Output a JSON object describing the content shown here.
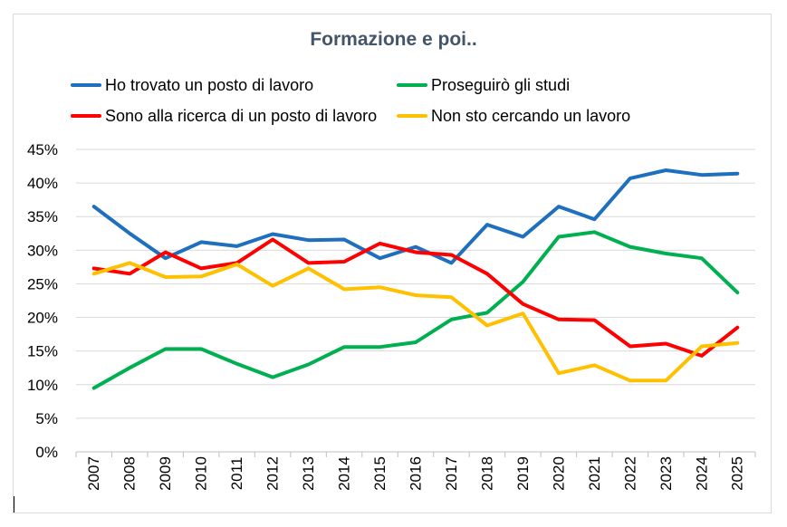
{
  "chart_data": {
    "type": "line",
    "title": "Formazione e poi..",
    "xlabel": "",
    "ylabel": "",
    "categories": [
      "2007",
      "2008",
      "2009",
      "2010",
      "2011",
      "2012",
      "2013",
      "2014",
      "2015",
      "2016",
      "2017",
      "2018",
      "2019",
      "2020",
      "2021",
      "2022",
      "2023",
      "2024",
      "2025"
    ],
    "ylim": [
      0,
      45
    ],
    "yticks": [
      "0%",
      "5%",
      "10%",
      "15%",
      "20%",
      "25%",
      "30%",
      "35%",
      "40%",
      "45%"
    ],
    "grid": true,
    "legend_position": "top",
    "series": [
      {
        "name": "Ho trovato un posto di lavoro",
        "color": "#1f6fbf",
        "values": [
          36.5,
          32.5,
          28.8,
          31.2,
          30.6,
          32.4,
          31.5,
          31.6,
          28.8,
          30.5,
          28.1,
          33.8,
          32.0,
          36.5,
          34.6,
          40.7,
          41.9,
          41.2,
          41.4
        ]
      },
      {
        "name": "Proseguirò gli studi",
        "color": "#00b050",
        "values": [
          9.5,
          12.5,
          15.3,
          15.3,
          13.1,
          11.1,
          13.0,
          15.6,
          15.6,
          16.3,
          19.7,
          20.7,
          25.3,
          32.0,
          32.7,
          30.5,
          29.5,
          28.8,
          23.7
        ]
      },
      {
        "name": "Sono alla ricerca di un posto di lavoro",
        "color": "#ff0000",
        "values": [
          27.3,
          26.5,
          29.7,
          27.3,
          28.1,
          31.6,
          28.1,
          28.3,
          31.0,
          29.7,
          29.3,
          26.5,
          22.0,
          19.7,
          19.6,
          15.7,
          16.1,
          14.3,
          18.5
        ]
      },
      {
        "name": "Non sto cercando un lavoro",
        "color": "#ffc000",
        "values": [
          26.5,
          28.1,
          26.0,
          26.1,
          27.9,
          24.7,
          27.3,
          24.2,
          24.5,
          23.3,
          23.0,
          18.8,
          20.6,
          11.7,
          12.9,
          10.6,
          10.6,
          15.7,
          16.2
        ]
      }
    ]
  }
}
